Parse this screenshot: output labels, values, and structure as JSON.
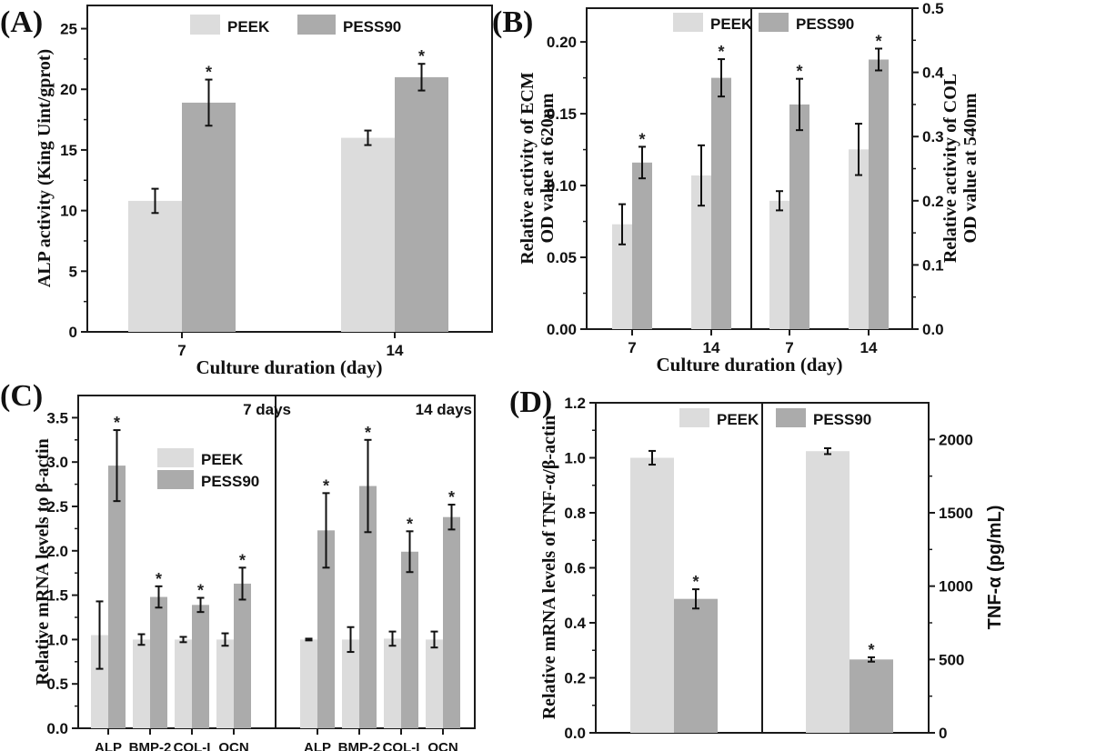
{
  "colors": {
    "peek": "#dcdcdc",
    "pess90": "#ababab",
    "axis": "#1a1a1a"
  },
  "chart_data": [
    {
      "panel": "(A)",
      "type": "bar",
      "categories": [
        "7",
        "14"
      ],
      "series": [
        {
          "name": "PEEK",
          "values": [
            10.8,
            16.0
          ],
          "errors": [
            1.0,
            0.6
          ],
          "significant": [
            false,
            false
          ]
        },
        {
          "name": "PESS90",
          "values": [
            18.9,
            21.0
          ],
          "errors": [
            1.9,
            1.1
          ],
          "significant": [
            true,
            true
          ]
        }
      ],
      "ylabel": "ALP activity (King Uint/gprot)",
      "xlabel": "Culture duration (day)",
      "ylim": [
        0,
        26
      ],
      "yticks": [
        "0",
        "5",
        "10",
        "15",
        "20",
        "25"
      ],
      "legend": "top"
    },
    {
      "panel": "(B)",
      "type": "bar",
      "subpanels": [
        {
          "measure": "ECM",
          "axis": "left",
          "categories": [
            "7",
            "14"
          ],
          "series": [
            {
              "name": "PEEK",
              "values": [
                0.073,
                0.107
              ],
              "errors": [
                0.014,
                0.021
              ],
              "significant": [
                false,
                false
              ]
            },
            {
              "name": "PESS90",
              "values": [
                0.116,
                0.175
              ],
              "errors": [
                0.011,
                0.013
              ],
              "significant": [
                true,
                true
              ]
            }
          ]
        },
        {
          "measure": "COL",
          "axis": "right",
          "categories": [
            "7",
            "14"
          ],
          "series": [
            {
              "name": "PEEK",
              "values": [
                0.2,
                0.28
              ],
              "errors": [
                0.015,
                0.04
              ],
              "significant": [
                false,
                false
              ]
            },
            {
              "name": "PESS90",
              "values": [
                0.35,
                0.42
              ],
              "errors": [
                0.04,
                0.017
              ],
              "significant": [
                true,
                true
              ]
            }
          ]
        }
      ],
      "ylabel_left": [
        "Relative activity of ECM",
        "OD value at 620nm"
      ],
      "ylabel_right": [
        "Relative activity of COL",
        "OD value at 540nm"
      ],
      "xlabel": "Culture duration (day)",
      "ylim_left": [
        0,
        0.2235
      ],
      "ylim_right": [
        0,
        0.5
      ],
      "yticks_left": [
        "0.00",
        "0.05",
        "0.10",
        "0.15",
        "0.20"
      ],
      "yticks_right": [
        "0.0",
        "0.1",
        "0.2",
        "0.3",
        "0.4",
        "0.5"
      ],
      "legend": "top"
    },
    {
      "panel": "(C)",
      "type": "bar",
      "subpanels": [
        {
          "label": "7 days",
          "categories": [
            "ALP",
            "BMP-2",
            "COL-I",
            "OCN"
          ],
          "series": [
            {
              "name": "PEEK",
              "values": [
                1.05,
                1.0,
                1.0,
                1.0
              ],
              "errors": [
                0.38,
                0.06,
                0.03,
                0.07
              ],
              "significant": [
                false,
                false,
                false,
                false
              ]
            },
            {
              "name": "PESS90",
              "values": [
                2.96,
                1.48,
                1.39,
                1.63
              ],
              "errors": [
                0.4,
                0.12,
                0.08,
                0.18
              ],
              "significant": [
                true,
                true,
                true,
                true
              ]
            }
          ]
        },
        {
          "label": "14 days",
          "categories": [
            "ALP",
            "BMP-2",
            "COL-I",
            "OCN"
          ],
          "series": [
            {
              "name": "PEEK",
              "values": [
                1.0,
                1.0,
                1.01,
                1.0
              ],
              "errors": [
                0.01,
                0.14,
                0.08,
                0.09
              ],
              "significant": [
                false,
                false,
                false,
                false
              ]
            },
            {
              "name": "PESS90",
              "values": [
                2.23,
                2.73,
                1.99,
                2.38
              ],
              "errors": [
                0.42,
                0.52,
                0.23,
                0.14
              ],
              "significant": [
                true,
                true,
                true,
                true
              ]
            }
          ]
        }
      ],
      "ylabel": "Relative mRNA levels to β-actin",
      "ylim": [
        0,
        3.75
      ],
      "yticks": [
        "0.0",
        "0.5",
        "1.0",
        "1.5",
        "2.0",
        "2.5",
        "3.0",
        "3.5"
      ],
      "legend": "top-left inside"
    },
    {
      "panel": "(D)",
      "type": "bar",
      "subpanels": [
        {
          "measure": "mRNA",
          "axis": "left",
          "series": [
            {
              "name": "PEEK",
              "value": 1.0,
              "error": 0.025,
              "significant": false
            },
            {
              "name": "PESS90",
              "value": 0.487,
              "error": 0.035,
              "significant": true
            }
          ]
        },
        {
          "measure": "protein",
          "axis": "right",
          "series": [
            {
              "name": "PEEK",
              "value": 1920,
              "error": 20,
              "significant": false
            },
            {
              "name": "PESS90",
              "value": 500,
              "error": 15,
              "significant": true
            }
          ]
        }
      ],
      "ylabel_left": "Relative mRNA levels of TNF-α/β-actin",
      "ylabel_right": "TNF-α (pg/mL)",
      "ylim_left": [
        0,
        1.2
      ],
      "ylim_right": [
        0,
        2250
      ],
      "yticks_left": [
        "0.0",
        "0.2",
        "0.4",
        "0.6",
        "0.8",
        "1.0",
        "1.2"
      ],
      "yticks_right": [
        "0",
        "500",
        "1000",
        "1500",
        "2000"
      ],
      "legend": "top"
    }
  ],
  "legend": {
    "peek": "PEEK",
    "pess90": "PESS90"
  },
  "star": "*"
}
